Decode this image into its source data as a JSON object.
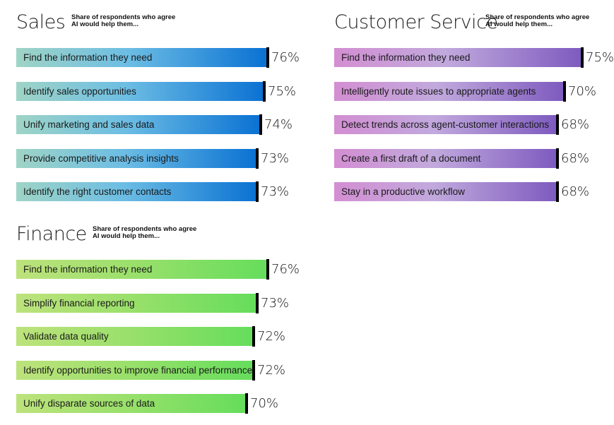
{
  "chart_data": [
    {
      "type": "bar",
      "title": "Sales",
      "subtitle": [
        "Share of respondents who agree",
        "AI would help them..."
      ],
      "categories": [
        "Find the information they need",
        "Identify sales opportunities",
        "Unify marketing and sales data",
        "Provide competitive analysis insights",
        "Identify the right customer contacts"
      ],
      "values": [
        76,
        75,
        74,
        73,
        73
      ],
      "labels": [
        "76%",
        "75%",
        "74%",
        "73%",
        "73%"
      ],
      "colors": [
        "#9fd4c6",
        "#6cbde4",
        "#0b72d3"
      ]
    },
    {
      "type": "bar",
      "title": "Customer Service",
      "subtitle": [
        "Share of respondents who agree",
        "AI would help them..."
      ],
      "categories": [
        "Find the information they need",
        "Intelligently route issues to appropriate agents",
        "Detect trends across agent-customer interactions",
        "Create a first draft of a document",
        "Stay in a productive workflow"
      ],
      "values": [
        75,
        70,
        68,
        68,
        68
      ],
      "labels": [
        "75%",
        "70%",
        "68%",
        "68%",
        "68%"
      ],
      "colors": [
        "#d38ed2",
        "#c1a9dd",
        "#7e5bbf"
      ]
    },
    {
      "type": "bar",
      "title": "Finance",
      "subtitle": [
        "Share of respondents who agree",
        "AI would help them..."
      ],
      "categories": [
        "Find the information they need",
        "Simplify financial reporting",
        "Validate data quality",
        "Identify opportunities to improve financial performance",
        "Unify disparate sources of data"
      ],
      "values": [
        76,
        73,
        72,
        72,
        70
      ],
      "labels": [
        "76%",
        "73%",
        "72%",
        "72%",
        "70%"
      ],
      "colors": [
        "#bde27c",
        "#9ce06c",
        "#66dd5c"
      ]
    }
  ]
}
